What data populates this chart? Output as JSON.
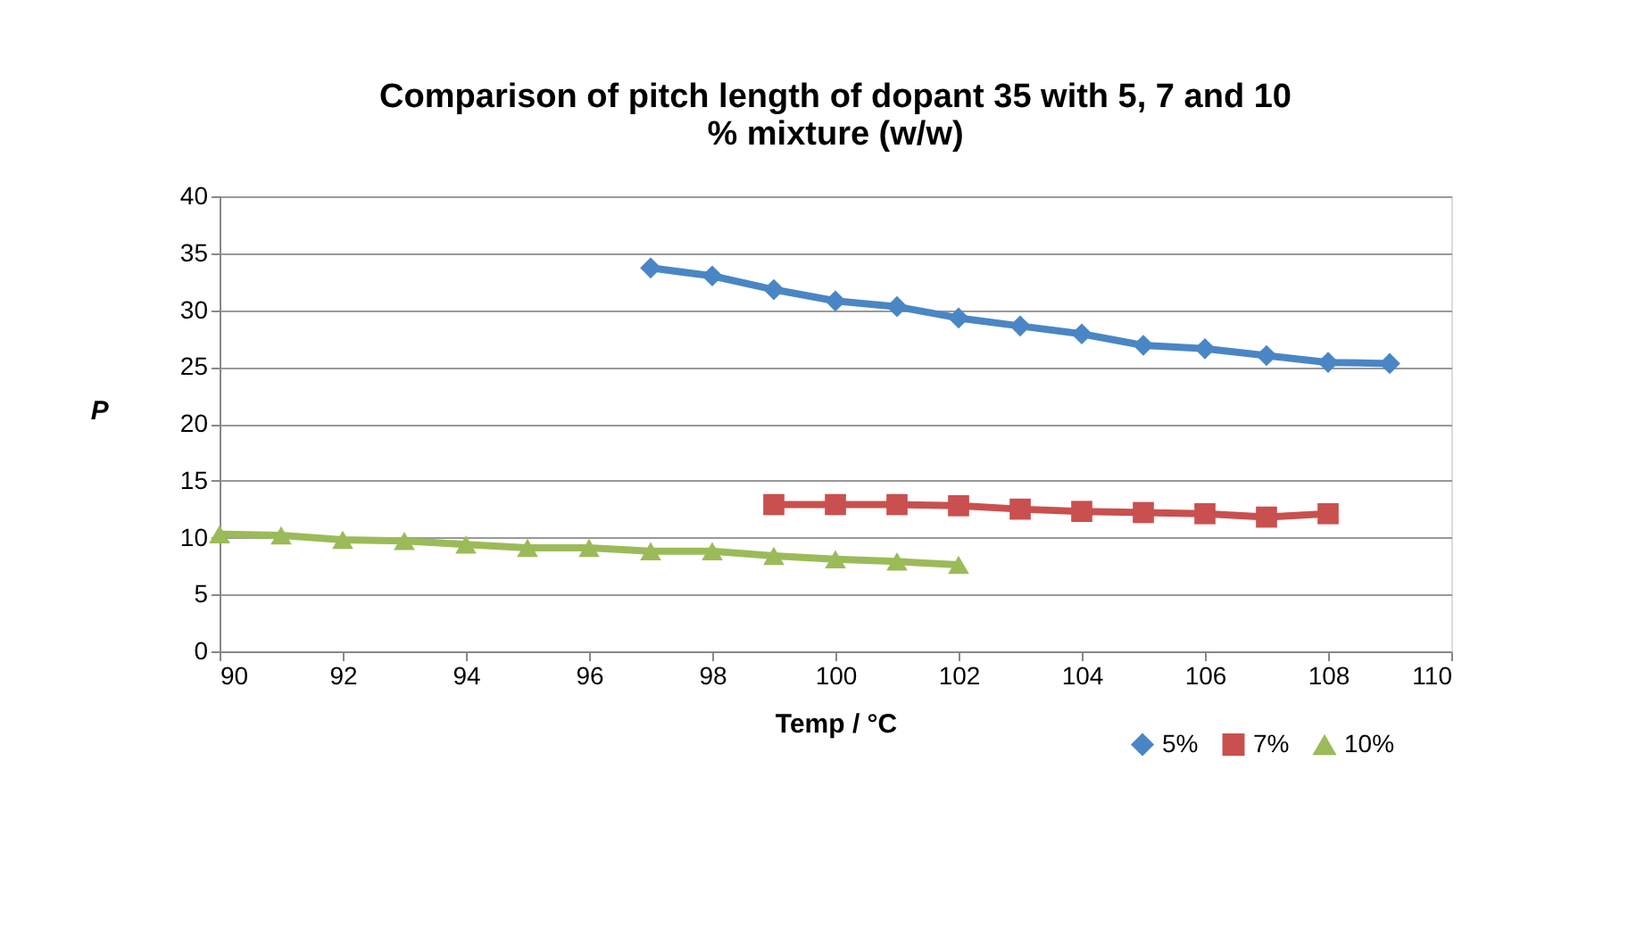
{
  "chart_data": {
    "type": "line",
    "title": "Comparison of pitch length of dopant 35 with 5, 7 and 10 % mixture (w/w)",
    "xlabel": "Temp / °C",
    "ylabel": "P",
    "series": [
      {
        "name": "5%",
        "color": "#4a86c5",
        "marker": "diamond",
        "x": [
          97,
          98,
          99,
          100,
          101,
          102,
          103,
          104,
          105,
          106,
          107,
          108,
          109
        ],
        "values": [
          33.7,
          33.0,
          31.8,
          30.8,
          30.3,
          29.3,
          28.6,
          27.9,
          26.9,
          26.6,
          26.0,
          25.4,
          25.3
        ]
      },
      {
        "name": "7%",
        "color": "#c9504f",
        "marker": "square",
        "x": [
          99,
          100,
          101,
          102,
          103,
          104,
          105,
          106,
          107,
          108
        ],
        "values": [
          12.9,
          12.9,
          12.9,
          12.8,
          12.5,
          12.3,
          12.2,
          12.1,
          11.8,
          12.1
        ]
      },
      {
        "name": "10%",
        "color": "#9bbb59",
        "marker": "triangle",
        "x": [
          90,
          91,
          92,
          93,
          94,
          95,
          96,
          97,
          98,
          99,
          100,
          101,
          102
        ],
        "values": [
          10.3,
          10.2,
          9.8,
          9.7,
          9.4,
          9.1,
          9.1,
          8.8,
          8.8,
          8.4,
          8.1,
          7.9,
          7.6
        ]
      }
    ],
    "xlim": [
      90,
      110
    ],
    "xticks": [
      90,
      92,
      94,
      96,
      98,
      100,
      102,
      104,
      106,
      108,
      110
    ],
    "ylim": [
      0,
      40
    ],
    "yticks": [
      0,
      5,
      10,
      15,
      20,
      25,
      30,
      35,
      40
    ],
    "grid": "y",
    "legend": "bottom right",
    "line_style": "solid"
  }
}
